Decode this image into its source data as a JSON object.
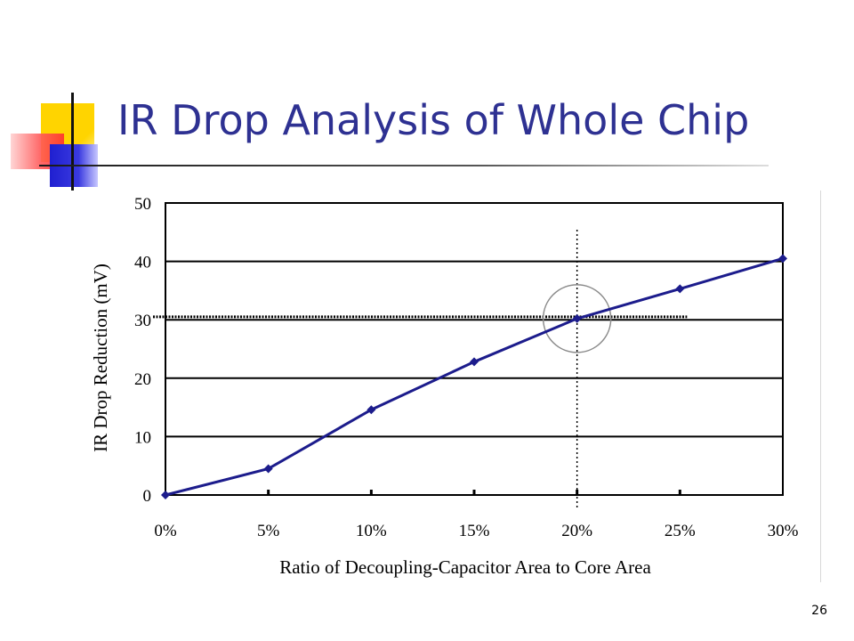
{
  "slide": {
    "title": "IR Drop Analysis of Whole Chip",
    "page_number": "26"
  },
  "colors": {
    "title": "#2e3192",
    "series_line": "#1c1c8c",
    "grid": "#000000"
  },
  "chart_data": {
    "type": "line",
    "xlabel": "Ratio of Decoupling-Capacitor Area to Core Area",
    "ylabel": "IR Drop Reduction (mV)",
    "categories": [
      "0%",
      "5%",
      "10%",
      "15%",
      "20%",
      "25%",
      "30%"
    ],
    "series": [
      {
        "values": [
          0,
          4.5,
          14.6,
          22.8,
          30.2,
          35.3,
          40.5
        ]
      }
    ],
    "ylim": [
      0,
      50
    ],
    "yticks": [
      0,
      10,
      20,
      30,
      40,
      50
    ],
    "grid": "horizontal",
    "annotations": [
      {
        "type": "vertical-dashed-line",
        "x": "20%"
      },
      {
        "type": "horizontal-dashed-line",
        "y": 30.5
      },
      {
        "type": "circle",
        "x": "20%",
        "y": 30.2
      }
    ]
  }
}
